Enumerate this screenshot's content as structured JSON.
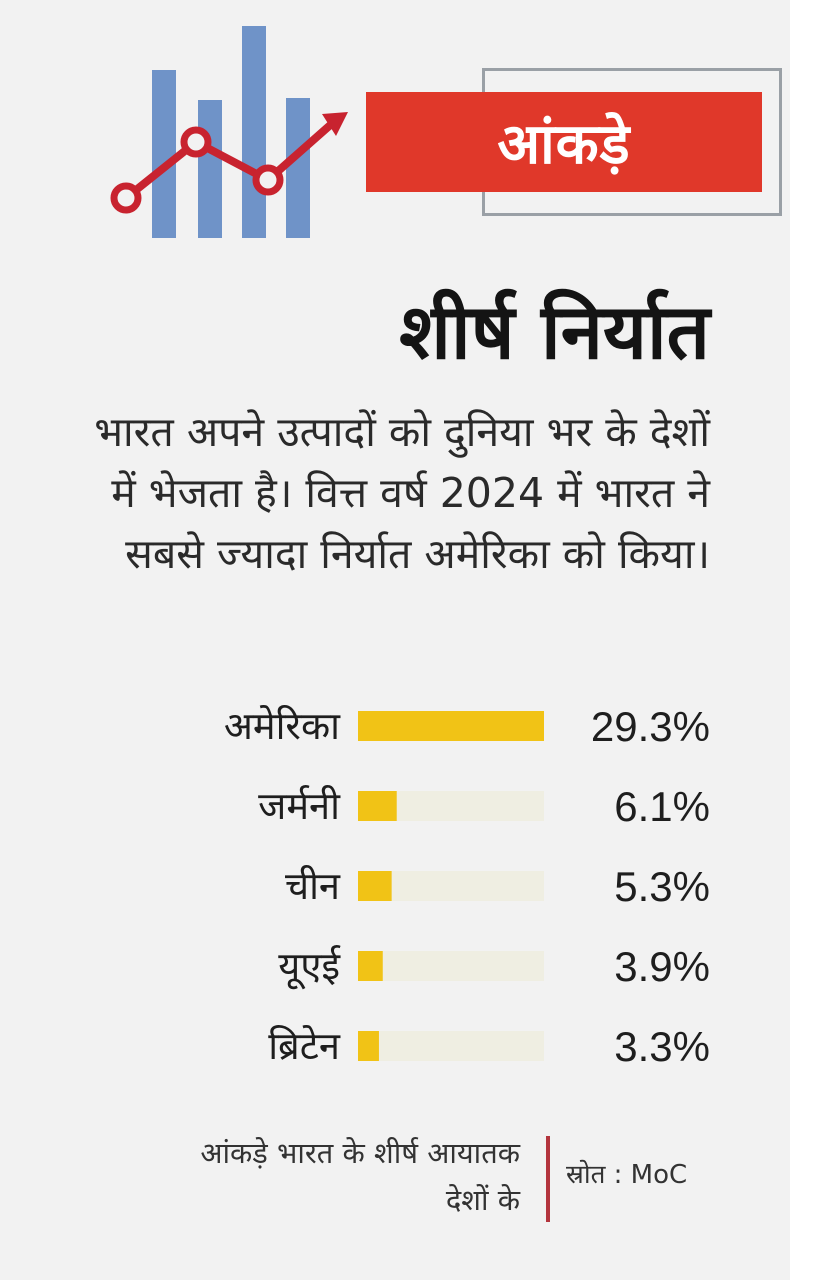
{
  "header": {
    "label": "आंकड़े",
    "accent_color": "#e0382a",
    "icon": "bar-chart-trend-icon"
  },
  "title": "शीर्ष निर्यात",
  "description": "भारत अपने उत्पादों को दुनिया भर के देशों में भेजता है। वित्त वर्ष 2024 में भारत ने सबसे ज्यादा निर्यात अमेरिका को किया।",
  "chart_data": {
    "type": "bar",
    "orientation": "horizontal",
    "categories": [
      "अमेरिका",
      "जर्मनी",
      "चीन",
      "यूएई",
      "ब्रिटेन"
    ],
    "values": [
      29.3,
      6.1,
      5.3,
      3.9,
      3.3
    ],
    "value_labels": [
      "29.3%",
      "6.1%",
      "5.3%",
      "3.9%",
      "3.3%"
    ],
    "unit": "%",
    "xlim": [
      0,
      29.3
    ],
    "bar_color": "#f1c316",
    "track_color": "#efeee2",
    "grid": false
  },
  "footer": {
    "note": "आंकड़े भारत के शीर्ष आयातक देशों के",
    "source": "स्रोत : MoC"
  }
}
